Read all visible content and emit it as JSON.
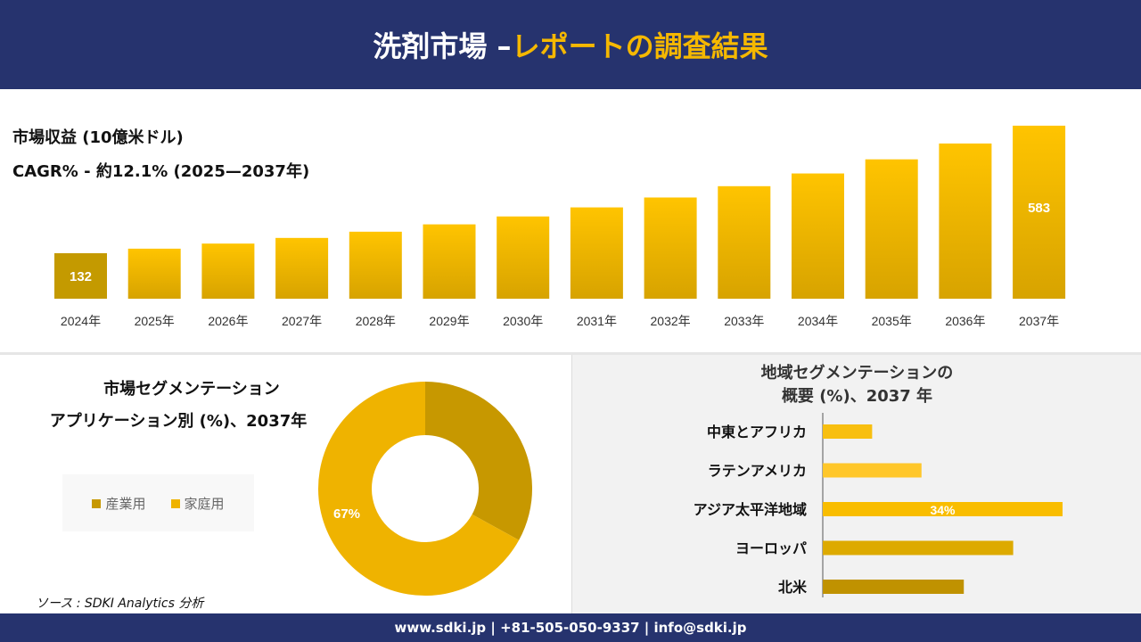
{
  "header": {
    "title_white": "洗剤市場 –",
    "title_yellow": "レポートの調査結果"
  },
  "revenue": {
    "line1": "市場収益 (10億米ドル)",
    "line2": "CAGR% - 約12.1% (2025—2037年)"
  },
  "chart_data": [
    {
      "type": "bar",
      "categories": [
        "2024年",
        "2025年",
        "2026年",
        "2027年",
        "2028年",
        "2029年",
        "2030年",
        "2031年",
        "2032年",
        "2033年",
        "2034年",
        "2035年",
        "2036年",
        "2037年"
      ],
      "values": [
        132,
        148,
        166,
        186,
        208,
        234,
        262,
        294,
        329,
        369,
        414,
        464,
        520,
        583
      ],
      "data_labels": {
        "0": "132",
        "13": "583"
      },
      "colors": [
        "#c49a00",
        "#f5b800"
      ]
    },
    {
      "type": "pie",
      "title": "市場セグメンテーション アプリケーション別 (%)、2037年",
      "categories": [
        "産業用",
        "家庭用"
      ],
      "values": [
        33,
        67
      ],
      "colors": [
        "#c79800",
        "#efb300"
      ],
      "data_labels": {
        "1": "67%"
      }
    },
    {
      "type": "bar",
      "orientation": "horizontal",
      "title": "地域セグメンテーションの 概要 (%)、2037 年",
      "categories": [
        "中東とアフリカ",
        "ラテンアメリカ",
        "アジア太平洋地域",
        "ヨーロッパ",
        "北米"
      ],
      "values": [
        7,
        14,
        34,
        27,
        20
      ],
      "data_labels": {
        "2": "34%"
      },
      "colors": [
        "#f8bf10",
        "#ffc72a",
        "#f9bd00",
        "#ddaa00",
        "#c09200"
      ]
    }
  ],
  "segment": {
    "title1": "市場セグメンテーション",
    "title2": "アプリケーション別 (%)、2037年"
  },
  "region": {
    "title1": "地域セグメンテーションの",
    "title2": "概要 (%)、2037 年"
  },
  "source": "ソース : SDKI Analytics 分析",
  "footer": "www.sdki.jp | +81-505-050-9337 | info@sdki.jp"
}
